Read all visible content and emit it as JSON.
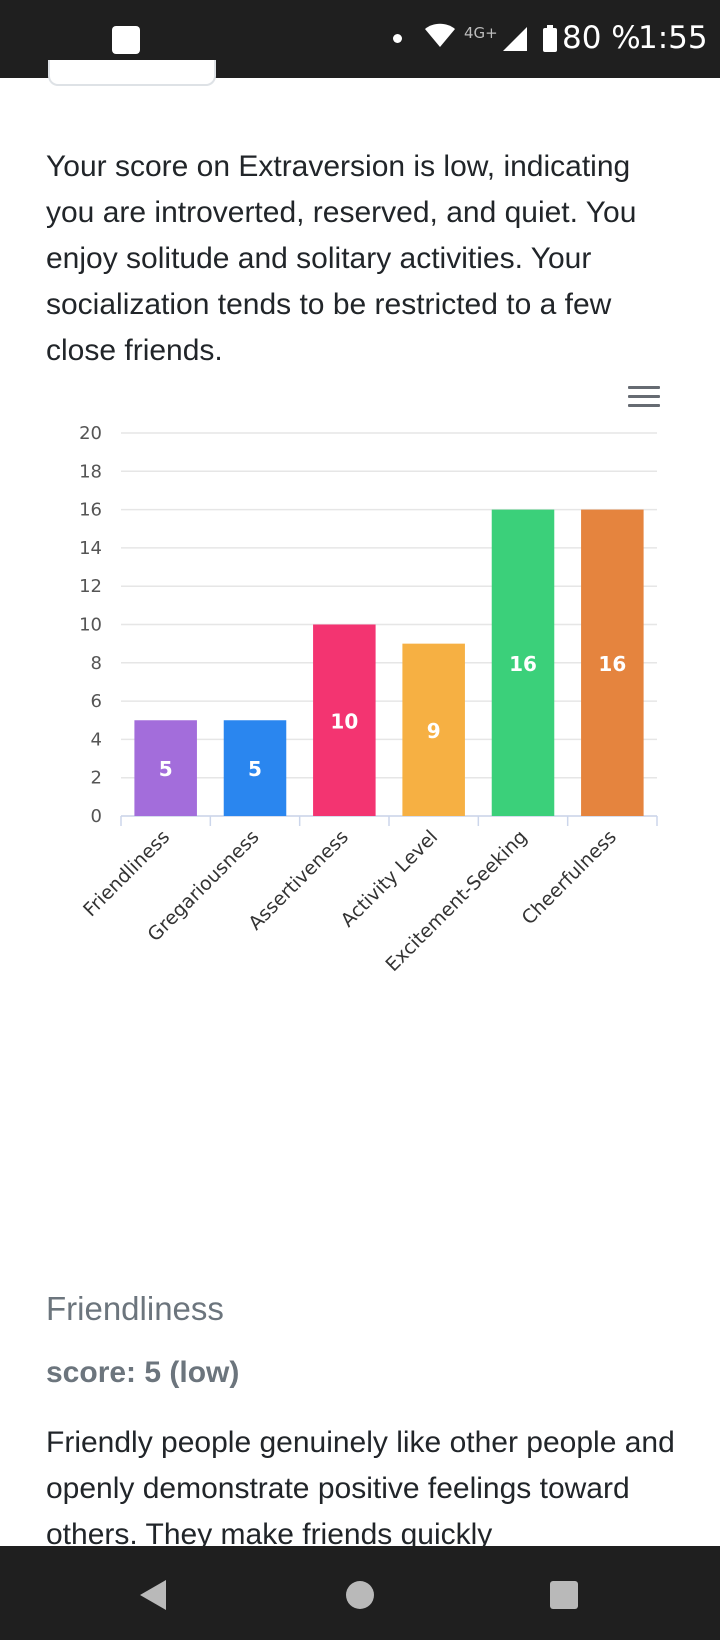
{
  "status_bar": {
    "network": "4G+",
    "battery": "80 %",
    "time": "1:55"
  },
  "content": {
    "intro": "Your score on Extraversion is low, indicating you are introverted, reserved, and quiet. You enjoy solitude and solitary activities. Your socialization tends to be restricted to a few close friends.",
    "section_title": "Friendliness",
    "score": "score: 5 (low)",
    "description": "Friendly people genuinely like other people and openly demonstrate positive feelings toward others. They make friends quickly"
  },
  "chart_data": {
    "type": "bar",
    "categories": [
      "Friendliness",
      "Gregariousness",
      "Assertiveness",
      "Activity Level",
      "Excitement-Seeking",
      "Cheerfulness"
    ],
    "values": [
      5,
      5,
      10,
      9,
      16,
      16
    ],
    "colors": [
      "#a36ddb",
      "#2a86ef",
      "#f33471",
      "#f6b043",
      "#3bd07a",
      "#e5843e"
    ],
    "ylim": [
      0,
      20
    ],
    "yticks": [
      "0",
      "2",
      "4",
      "6",
      "8",
      "10",
      "12",
      "14",
      "16",
      "18",
      "20"
    ],
    "grid": true,
    "data_labels": true
  },
  "icons": {
    "chart_menu": "hamburger-menu-icon",
    "nav_back": "back-triangle-icon",
    "nav_home": "home-circle-icon",
    "nav_recents": "recents-square-icon"
  }
}
